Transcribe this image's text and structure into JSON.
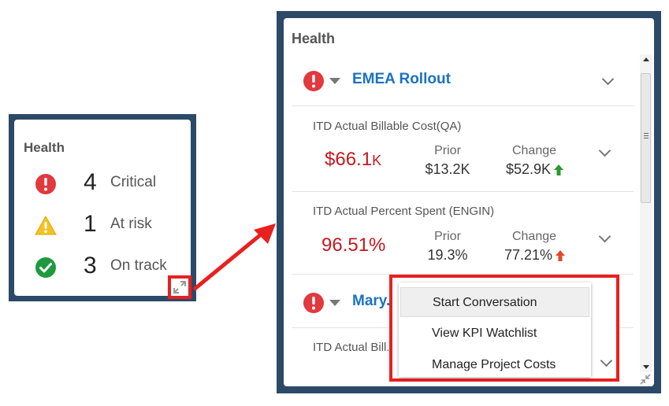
{
  "small_panel": {
    "title": "Health",
    "rows": [
      {
        "icon": "critical-icon",
        "count": "4",
        "label": "Critical"
      },
      {
        "icon": "warning-icon",
        "count": "1",
        "label": "At risk"
      },
      {
        "icon": "check-icon",
        "count": "3",
        "label": "On track"
      }
    ]
  },
  "big_panel": {
    "title": "Health",
    "projects": [
      {
        "name": "EMEA Rollout"
      },
      {
        "name": "Mary..."
      }
    ],
    "kpis": [
      {
        "title": "ITD Actual Billable Cost(QA)",
        "value": "$66.1",
        "unit": "K",
        "prior_label": "Prior",
        "prior": "$13.2K",
        "change_label": "Change",
        "change": "$52.9K",
        "trend": "up-green"
      },
      {
        "title": "ITD Actual Percent Spent (ENGIN)",
        "value": "96.51%",
        "unit": "",
        "prior_label": "Prior",
        "prior": "19.3%",
        "change_label": "Change",
        "change": "77.21%",
        "trend": "up-red"
      },
      {
        "title": "ITD Actual Bill..."
      }
    ]
  },
  "context_menu": {
    "items": [
      "Start Conversation",
      "View KPI Watchlist",
      "Manage Project Costs"
    ]
  },
  "colors": {
    "frame": "#2c4a68",
    "highlight": "#e8201f",
    "link": "#1a73c0",
    "kpi_red": "#c8171e",
    "up_green": "#2a9a2a",
    "up_red": "#e04a2a"
  }
}
